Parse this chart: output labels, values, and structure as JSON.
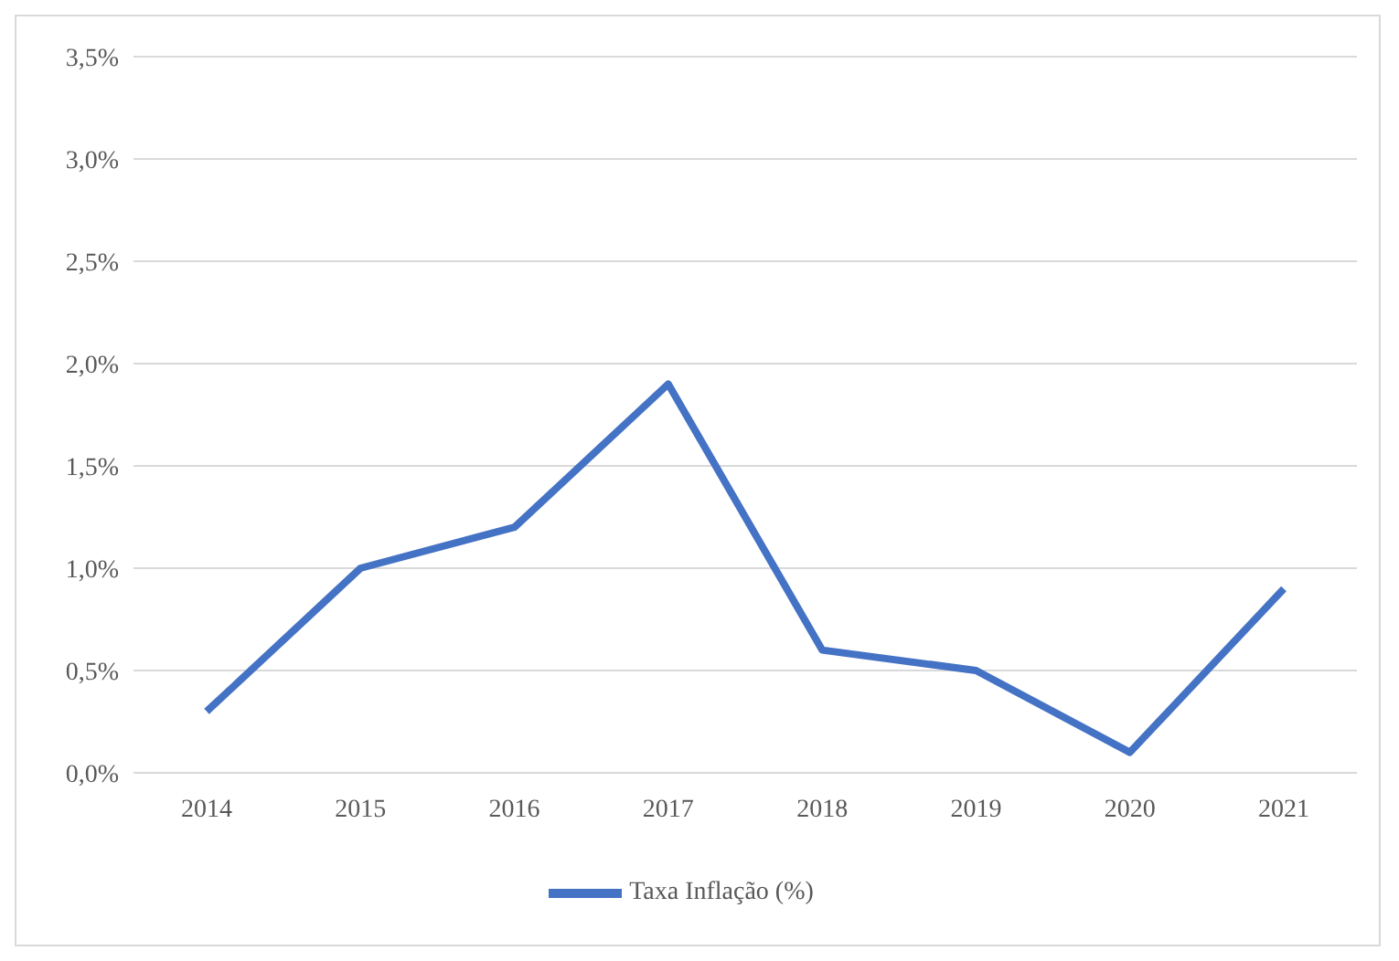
{
  "chart_data": {
    "type": "line",
    "categories": [
      "2014",
      "2015",
      "2016",
      "2017",
      "2018",
      "2019",
      "2020",
      "2021"
    ],
    "series": [
      {
        "name": "Taxa Inflação (%)",
        "color": "#4472c4",
        "values": [
          0.3,
          1.0,
          1.2,
          1.9,
          0.6,
          0.5,
          0.1,
          0.9
        ]
      }
    ],
    "ylim": [
      0,
      3.5
    ],
    "yticks": [
      {
        "value": 0,
        "label": "0,0%"
      },
      {
        "value": 0.5,
        "label": "0,5%"
      },
      {
        "value": 1,
        "label": "1,0%"
      },
      {
        "value": 1.5,
        "label": "1,5%"
      },
      {
        "value": 2,
        "label": "2,0%"
      },
      {
        "value": 2.5,
        "label": "2,5%"
      },
      {
        "value": 3,
        "label": "3,0%"
      },
      {
        "value": 3.5,
        "label": "3,5%"
      }
    ],
    "grid": "y",
    "legend": "bottom",
    "marker": "none",
    "line_style": "solid"
  }
}
